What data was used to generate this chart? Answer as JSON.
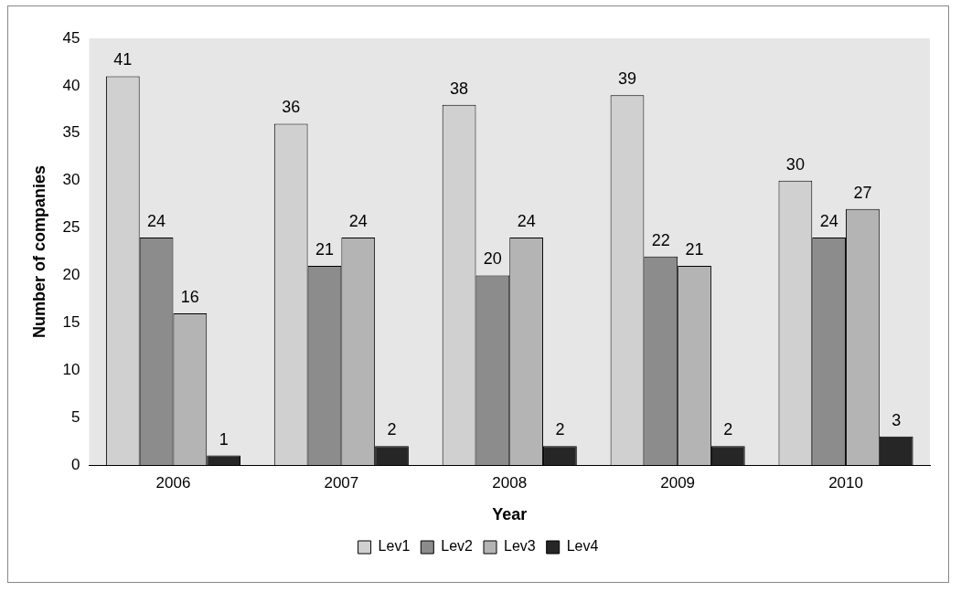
{
  "chart_data": {
    "type": "bar",
    "xlabel": "Year",
    "ylabel": "Number of companies",
    "categories": [
      "2006",
      "2007",
      "2008",
      "2009",
      "2010"
    ],
    "series": [
      {
        "name": "Lev1",
        "color": "#d0d0d0",
        "values": [
          41,
          36,
          38,
          39,
          30
        ]
      },
      {
        "name": "Lev2",
        "color": "#8c8c8c",
        "values": [
          24,
          21,
          20,
          22,
          24
        ]
      },
      {
        "name": "Lev3",
        "color": "#b4b4b4",
        "values": [
          16,
          24,
          24,
          21,
          27
        ]
      },
      {
        "name": "Lev4",
        "color": "#262626",
        "values": [
          1,
          2,
          2,
          2,
          3
        ]
      }
    ],
    "ylim": [
      0,
      45
    ],
    "yticks": [
      0,
      5,
      10,
      15,
      20,
      25,
      30,
      35,
      40,
      45
    ],
    "grid": false,
    "legend": "bottom",
    "data_labels": true
  }
}
